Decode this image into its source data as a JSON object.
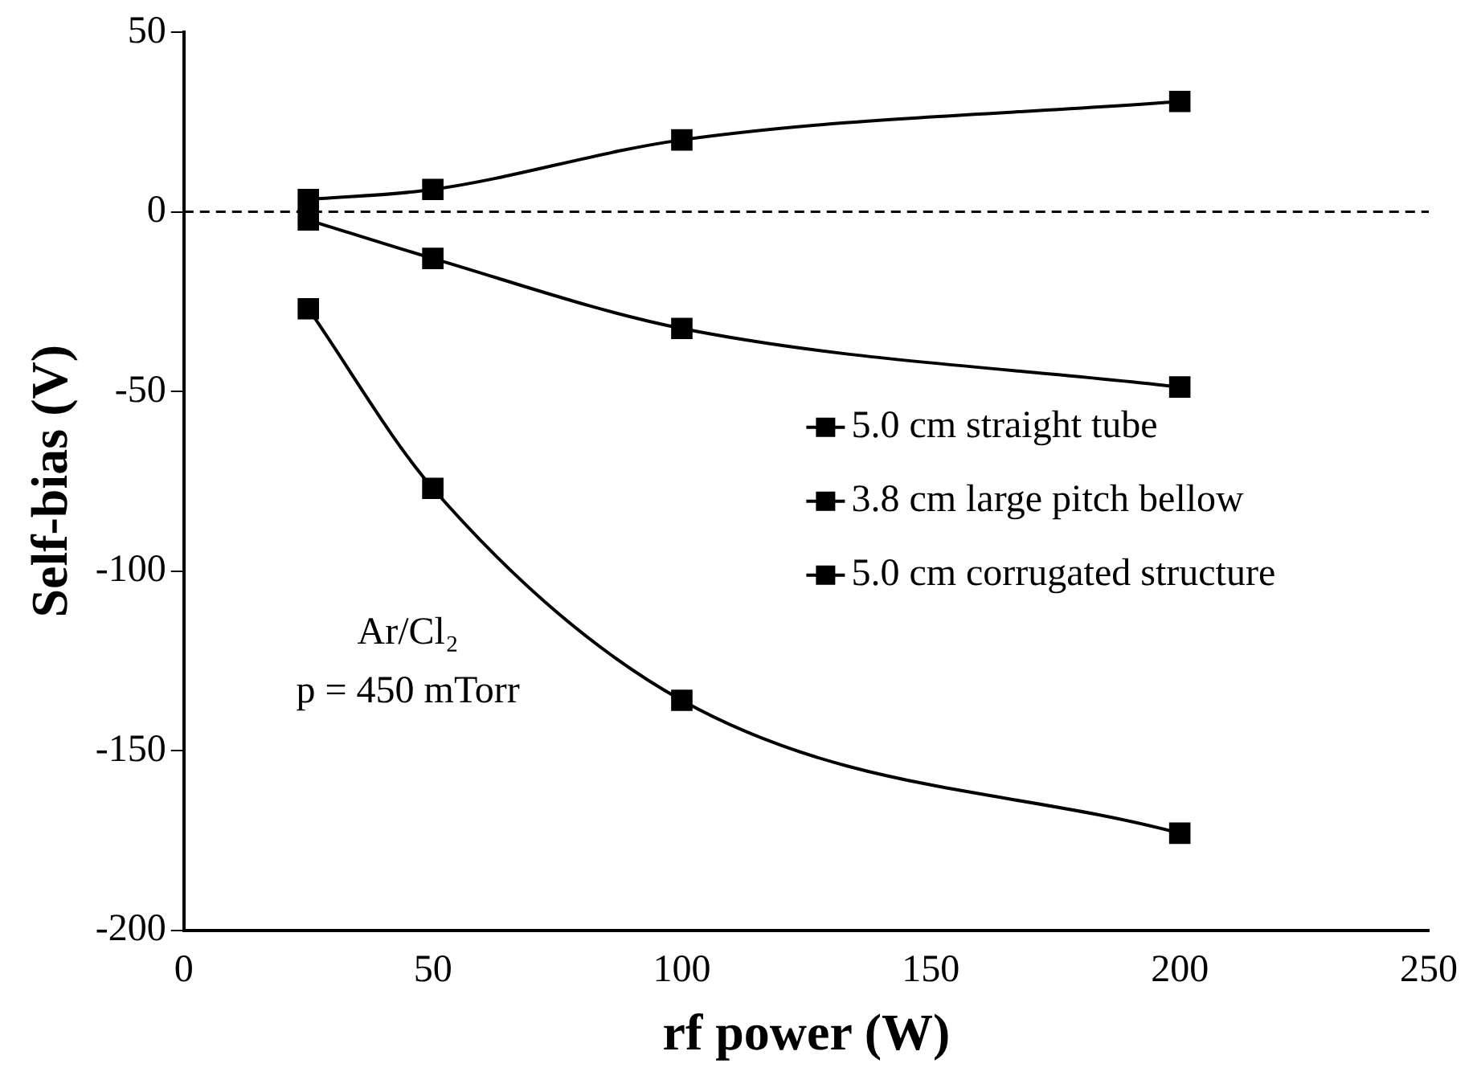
{
  "chart_data": {
    "type": "line",
    "xlabel": "rf power (W)",
    "ylabel": "Self-bias (V)",
    "x": [
      25,
      50,
      100,
      200
    ],
    "series": [
      {
        "name": "5.0 cm straight tube",
        "color": "#000000",
        "values": [
          3.4,
          6.2,
          20,
          30.7
        ]
      },
      {
        "name": "3.8 cm large pitch bellow",
        "color": "#000000",
        "values": [
          -2.3,
          -13,
          -32.5,
          -48.8
        ]
      },
      {
        "name": "5.0 cm corrugated structure",
        "color": "#000000",
        "values": [
          -27,
          -77,
          -136,
          -173
        ]
      }
    ],
    "xlim": [
      0,
      250
    ],
    "xticks": [
      0,
      50,
      100,
      150,
      200,
      250
    ],
    "ylim": [
      -200,
      50
    ],
    "yticks": [
      -200,
      -150,
      -100,
      -50,
      0,
      50
    ],
    "ref_lines": [
      {
        "axis": "y",
        "value": 0,
        "line_style": "dashed",
        "color": "#000000"
      }
    ],
    "annotations": [
      "Ar/Cl₂",
      "p = 450 mTorr"
    ],
    "grid": false,
    "legend": "right",
    "marker": "square",
    "line_style": "solid"
  }
}
